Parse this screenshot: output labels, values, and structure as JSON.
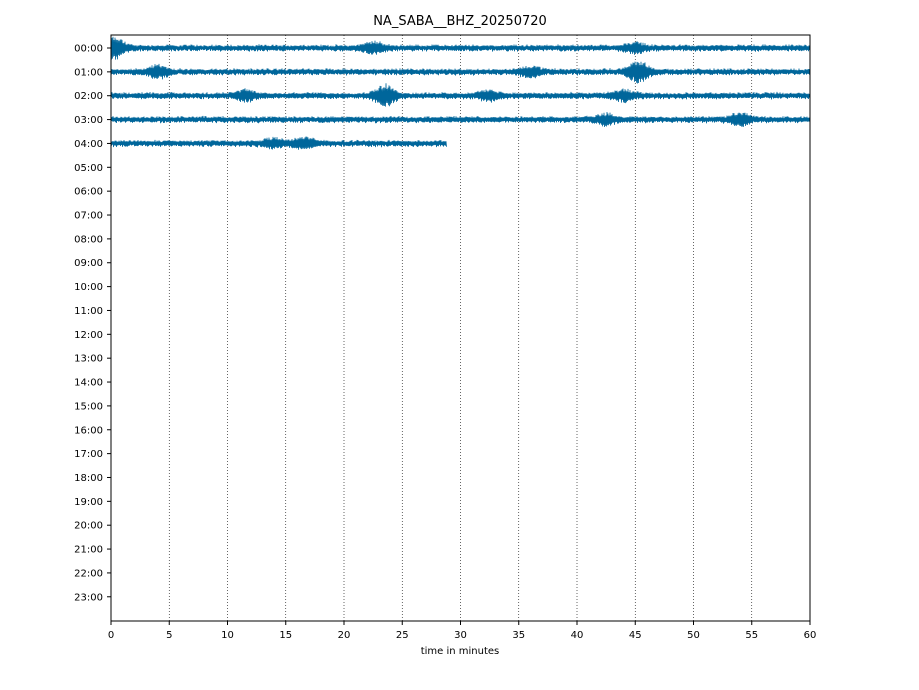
{
  "chart_data": {
    "type": "line",
    "title": "NA_SABA__BHZ_20250720",
    "xlabel": "time in minutes",
    "ylabel": "",
    "xlim": [
      0,
      60
    ],
    "x_ticks": [
      0,
      5,
      10,
      15,
      20,
      25,
      30,
      35,
      40,
      45,
      50,
      55,
      60
    ],
    "x_tick_labels": [
      "0",
      "5",
      "10",
      "15",
      "20",
      "25",
      "30",
      "35",
      "40",
      "45",
      "50",
      "55",
      "60"
    ],
    "y_tick_labels": [
      "00:00",
      "01:00",
      "02:00",
      "03:00",
      "04:00",
      "05:00",
      "06:00",
      "07:00",
      "08:00",
      "09:00",
      "10:00",
      "11:00",
      "12:00",
      "13:00",
      "14:00",
      "15:00",
      "16:00",
      "17:00",
      "18:00",
      "19:00",
      "20:00",
      "21:00",
      "22:00",
      "23:00"
    ],
    "vertical_grid": true,
    "grid_style": "dotted",
    "trace_color": "#00669b",
    "series": [
      {
        "hour": "00:00",
        "start_min": 0,
        "end_min": 60,
        "events": [
          {
            "t": 0.3,
            "amp": 1.0
          },
          {
            "t": 22.5,
            "amp": 0.5
          },
          {
            "t": 45.0,
            "amp": 0.4
          }
        ]
      },
      {
        "hour": "01:00",
        "start_min": 0,
        "end_min": 60,
        "events": [
          {
            "t": 4.0,
            "amp": 0.55
          },
          {
            "t": 36.0,
            "amp": 0.45
          },
          {
            "t": 45.3,
            "amp": 1.0
          }
        ]
      },
      {
        "hour": "02:00",
        "start_min": 0,
        "end_min": 60,
        "events": [
          {
            "t": 11.5,
            "amp": 0.45
          },
          {
            "t": 23.5,
            "amp": 1.0
          },
          {
            "t": 32.5,
            "amp": 0.45
          },
          {
            "t": 44.0,
            "amp": 0.45
          }
        ]
      },
      {
        "hour": "03:00",
        "start_min": 0,
        "end_min": 60,
        "events": [
          {
            "t": 42.5,
            "amp": 0.45
          },
          {
            "t": 54.0,
            "amp": 0.55
          }
        ]
      },
      {
        "hour": "04:00",
        "start_min": 0,
        "end_min": 28.8,
        "events": [
          {
            "t": 14.0,
            "amp": 0.4
          },
          {
            "t": 16.5,
            "amp": 0.5
          }
        ]
      }
    ]
  }
}
